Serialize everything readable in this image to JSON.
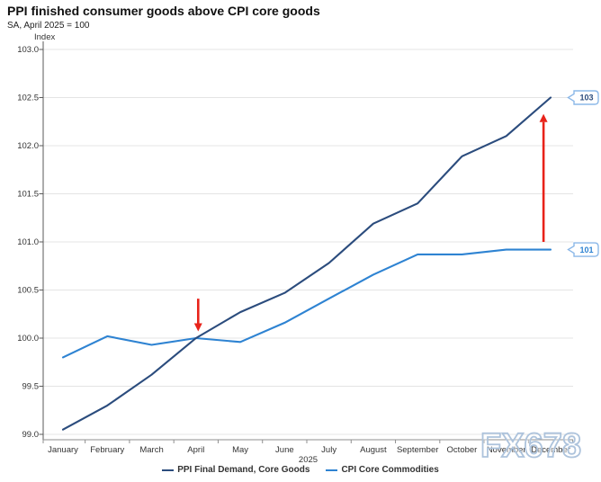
{
  "header": {
    "title": "PPI finished consumer goods above CPI core goods",
    "subtitle": "SA, April 2025 = 100"
  },
  "watermark": "FX678",
  "colors": {
    "ppi_line": "#2b4c7d",
    "cpi_line": "#2e83d2",
    "annotation_red": "#e8231a",
    "callout_border": "#8cb8e8",
    "gridline": "#e4e4e4",
    "axis": "#8f8f8f",
    "y_axis": "#5a5a5a",
    "label_text": "#333333",
    "watermark": "#adc3dc"
  },
  "chart_data": {
    "type": "line",
    "title": "PPI finished consumer goods above CPI core goods",
    "subtitle": "SA, April 2025 = 100",
    "y_axis_title": "Index",
    "x_axis_year_label": "2025",
    "ylim": [
      99.0,
      103.0
    ],
    "y_tick_step": 0.5,
    "y_ticks": [
      "99.0",
      "99.5",
      "100.0",
      "100.5",
      "101.0",
      "101.5",
      "102.0",
      "102.5",
      "103.0"
    ],
    "grid": true,
    "legend_position": "bottom",
    "categories": [
      "January",
      "February",
      "March",
      "April",
      "May",
      "June",
      "July",
      "August",
      "September",
      "October",
      "November",
      "December"
    ],
    "series": [
      {
        "id": "ppi",
        "name": "PPI Final Demand, Core Goods",
        "color": "#2b4c7d",
        "end_label": "103",
        "values": [
          99.05,
          99.3,
          99.62,
          100.0,
          100.27,
          100.47,
          100.78,
          101.19,
          101.4,
          101.89,
          102.1,
          102.5
        ]
      },
      {
        "id": "cpi",
        "name": "CPI Core Commodities",
        "color": "#2e83d2",
        "end_label": "101",
        "values": [
          99.8,
          100.02,
          99.93,
          100.0,
          99.96,
          100.16,
          100.41,
          100.66,
          100.87,
          100.87,
          100.92,
          100.92
        ]
      }
    ],
    "annotations": [
      {
        "id": "arrow-down-april",
        "direction": "down",
        "month_x": 3.05,
        "from_value": 100.41,
        "to_value": 100.07
      },
      {
        "id": "arrow-up-december",
        "direction": "up",
        "month_x": 10.84,
        "from_value": 101.0,
        "to_value": 102.33
      }
    ]
  }
}
